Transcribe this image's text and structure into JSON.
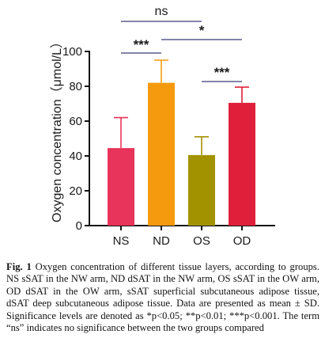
{
  "chart_data": {
    "type": "bar",
    "categories": [
      "NS",
      "ND",
      "OS",
      "OD"
    ],
    "values": [
      44.5,
      82,
      40.5,
      70.5
    ],
    "errors": [
      17.5,
      13,
      10.5,
      9
    ],
    "colors": [
      "#e8335a",
      "#f59a0e",
      "#a39200",
      "#e0203a"
    ],
    "ylabel": "Oxygen concentration（μmol/L）",
    "ylim": [
      0,
      100
    ],
    "yticks": [
      "0",
      "20",
      "40",
      "60",
      "80",
      "100"
    ],
    "significance": [
      {
        "from": "NS",
        "to": "OS",
        "label": "ns"
      },
      {
        "from": "NS",
        "to": "ND",
        "label": "***"
      },
      {
        "from": "ND",
        "to": "OD",
        "label": "*"
      },
      {
        "from": "OS",
        "to": "OD",
        "label": "***"
      }
    ]
  },
  "caption": {
    "fig_label": "Fig. 1",
    "text": "Oxygen concentration of different tissue layers, according to groups. NS sSAT in the NW arm, ND dSAT in the NW arm, OS sSAT in the OW arm, OD dSAT in the OW arm, sSAT superficial subcutaneous adipose tissue, dSAT deep subcutaneous adipose tissue. Data are presented as mean ± SD. Significance levels are denoted as *p<0.05; **p<0.01; ***p<0.001. The term “ns” indicates no significance between the two groups compared"
  }
}
